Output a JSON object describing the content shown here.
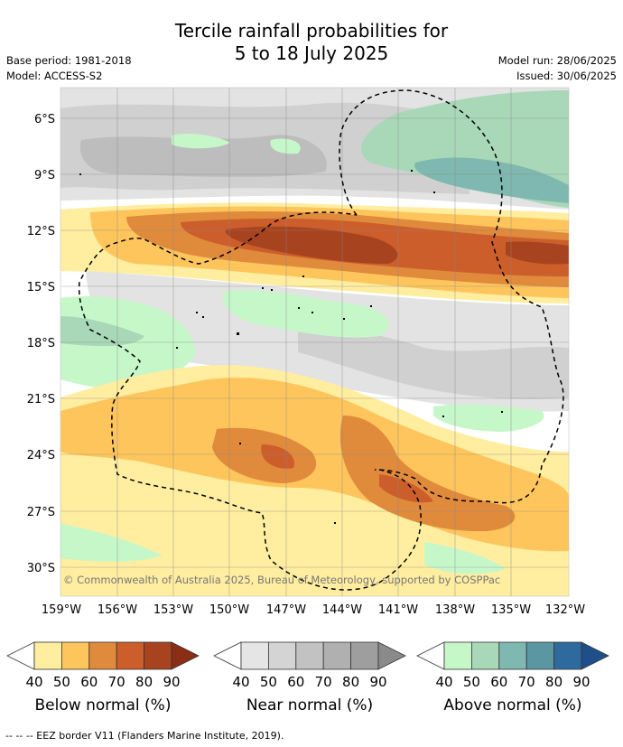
{
  "title_line1": "Tercile rainfall probabilities for",
  "title_line2": "5 to 18 July 2025",
  "base_period": "Base period: 1981-2018",
  "model": "Model: ACCESS-S2",
  "model_run": "Model run: 28/06/2025",
  "issued": "Issued: 30/06/2025",
  "copyright": "© Commonwealth of Australia 2025, Bureau of Meteorology, supported by COSPPac",
  "lat_labels": [
    "6°S",
    "9°S",
    "12°S",
    "15°S",
    "18°S",
    "21°S",
    "24°S",
    "27°S",
    "30°S"
  ],
  "lon_labels": [
    "159°W",
    "156°W",
    "153°W",
    "150°W",
    "147°W",
    "144°W",
    "141°W",
    "138°W",
    "135°W",
    "132°W"
  ],
  "legends": [
    {
      "title": "Below normal (%)",
      "ticks": [
        "40",
        "50",
        "60",
        "70",
        "80",
        "90"
      ],
      "colors": [
        "#ffeda0",
        "#fec55c",
        "#e08a3c",
        "#cc5e2c",
        "#a8431f",
        "#8c2d15"
      ]
    },
    {
      "title": "Near normal (%)",
      "ticks": [
        "40",
        "50",
        "60",
        "70",
        "80",
        "90"
      ],
      "colors": [
        "#e5e5e5",
        "#d4d4d4",
        "#c2c2c2",
        "#b0b0b0",
        "#9e9e9e",
        "#8a8a8a"
      ]
    },
    {
      "title": "Above normal (%)",
      "ticks": [
        "40",
        "50",
        "60",
        "70",
        "80",
        "90"
      ],
      "colors": [
        "#c6f7c9",
        "#a8d8b8",
        "#7fb8b0",
        "#5b97a3",
        "#2f6a9e",
        "#1f4f8a"
      ]
    }
  ],
  "footer": "-- -- -- EEZ border V11 (Flanders Marine Institute, 2019)."
}
